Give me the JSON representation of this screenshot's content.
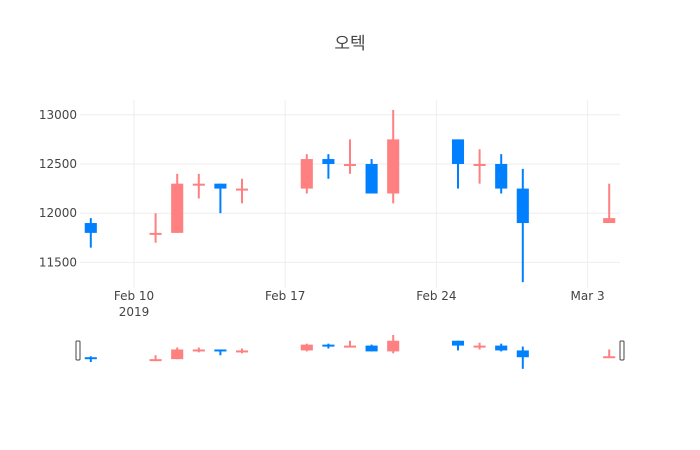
{
  "chart_data": {
    "type": "candlestick",
    "title": "오텍",
    "x_ticks": [
      {
        "date": "2019-02-10",
        "label": "Feb 10",
        "sublabel": "2019"
      },
      {
        "date": "2019-02-17",
        "label": "Feb 17",
        "sublabel": ""
      },
      {
        "date": "2019-02-24",
        "label": "Feb 24",
        "sublabel": ""
      },
      {
        "date": "2019-03-03",
        "label": "Mar 3",
        "sublabel": ""
      }
    ],
    "y_ticks": [
      11500,
      12000,
      12500,
      13000
    ],
    "xlim": [
      "2019-02-08",
      "2019-03-04"
    ],
    "ylim": [
      11240,
      13150
    ],
    "grid": true,
    "rangeslider": true,
    "colors": {
      "increasing": "#ff8080",
      "decreasing": "#0080ff"
    },
    "candles": [
      {
        "date": "2019-02-08",
        "open": 11900,
        "high": 11950,
        "low": 11650,
        "close": 11800
      },
      {
        "date": "2019-02-11",
        "open": 11800,
        "high": 12000,
        "low": 11700,
        "close": 11800
      },
      {
        "date": "2019-02-12",
        "open": 11800,
        "high": 12400,
        "low": 11800,
        "close": 12300
      },
      {
        "date": "2019-02-13",
        "open": 12300,
        "high": 12400,
        "low": 12150,
        "close": 12300
      },
      {
        "date": "2019-02-14",
        "open": 12300,
        "high": 12300,
        "low": 12000,
        "close": 12250
      },
      {
        "date": "2019-02-15",
        "open": 12250,
        "high": 12350,
        "low": 12100,
        "close": 12250
      },
      {
        "date": "2019-02-18",
        "open": 12250,
        "high": 12600,
        "low": 12200,
        "close": 12550
      },
      {
        "date": "2019-02-19",
        "open": 12550,
        "high": 12600,
        "low": 12350,
        "close": 12500
      },
      {
        "date": "2019-02-20",
        "open": 12500,
        "high": 12750,
        "low": 12400,
        "close": 12500
      },
      {
        "date": "2019-02-21",
        "open": 12500,
        "high": 12550,
        "low": 12200,
        "close": 12200
      },
      {
        "date": "2019-02-22",
        "open": 12200,
        "high": 13050,
        "low": 12100,
        "close": 12750
      },
      {
        "date": "2019-02-25",
        "open": 12750,
        "high": 12750,
        "low": 12250,
        "close": 12500
      },
      {
        "date": "2019-02-26",
        "open": 12500,
        "high": 12650,
        "low": 12300,
        "close": 12500
      },
      {
        "date": "2019-02-27",
        "open": 12500,
        "high": 12600,
        "low": 12200,
        "close": 12250
      },
      {
        "date": "2019-02-28",
        "open": 12250,
        "high": 12450,
        "low": 11300,
        "close": 11900
      },
      {
        "date": "2019-03-04",
        "open": 11900,
        "high": 12300,
        "low": 11900,
        "close": 11950
      }
    ]
  }
}
